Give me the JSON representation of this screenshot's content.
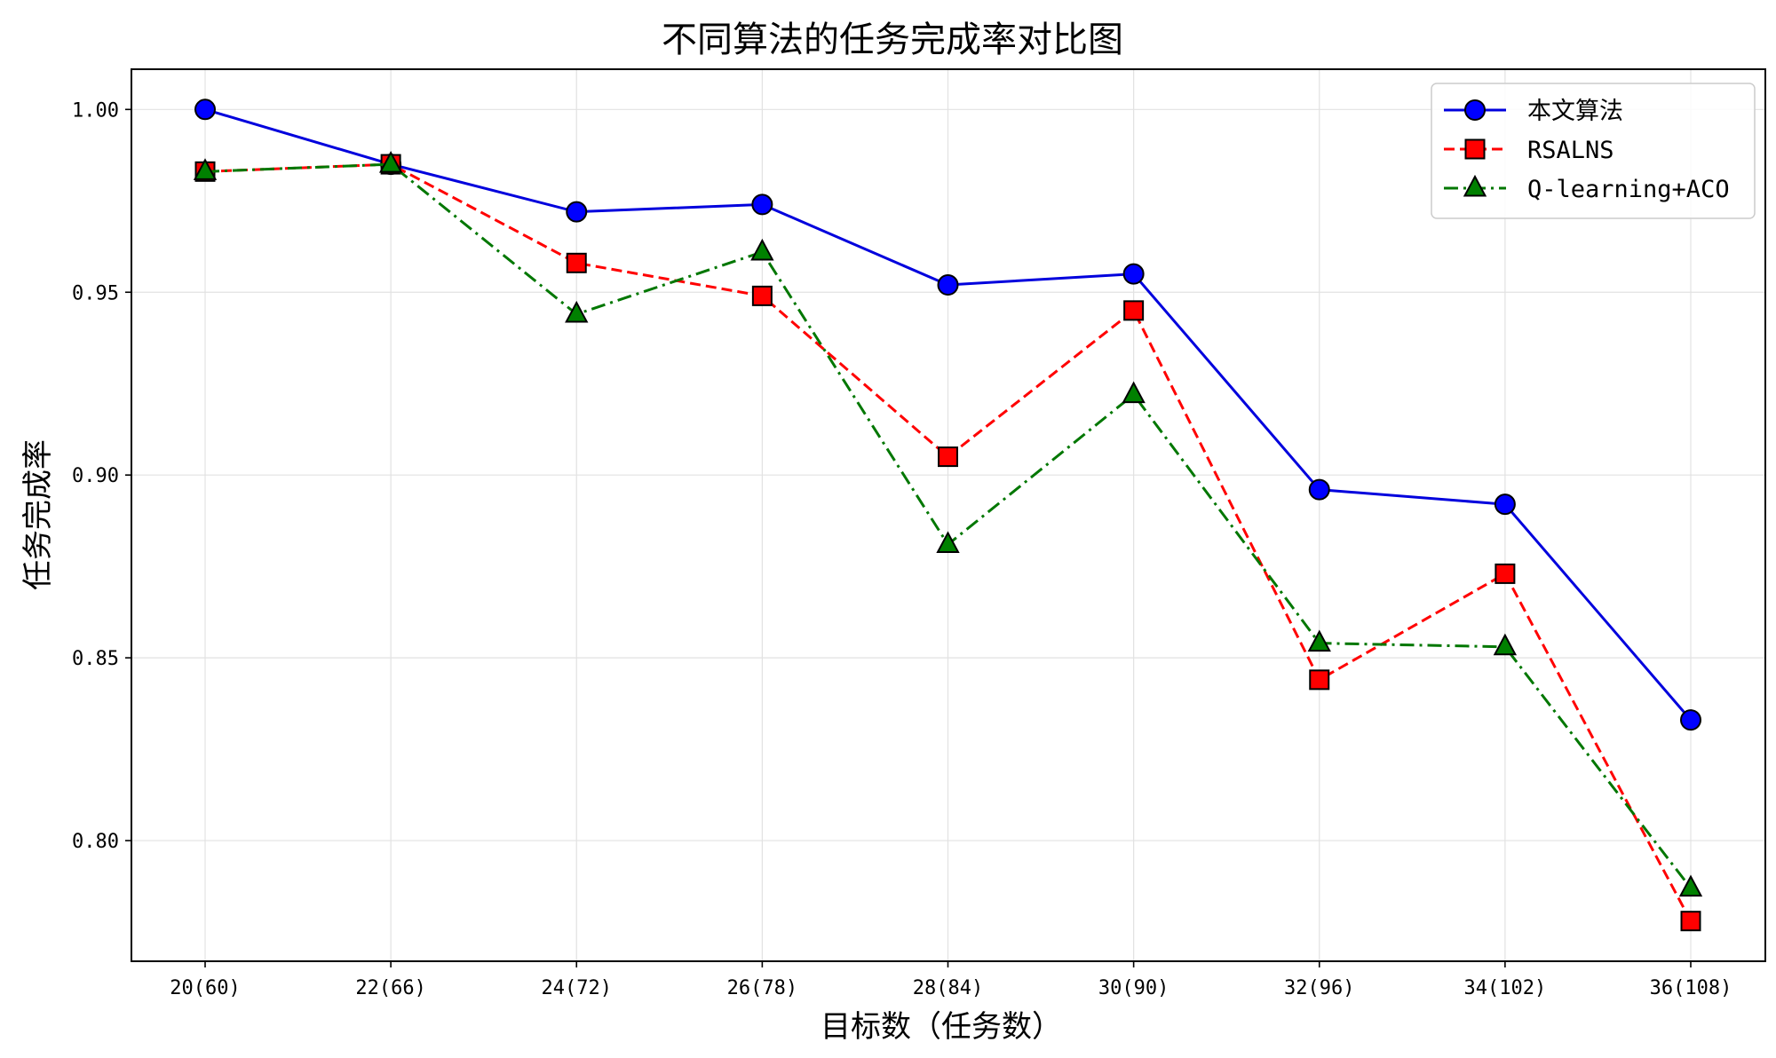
{
  "chart_data": {
    "type": "line",
    "title": "不同算法的任务完成率对比图",
    "xlabel": "目标数（任务数）",
    "ylabel": "任务完成率",
    "categories": [
      "20(60)",
      "22(66)",
      "24(72)",
      "26(78)",
      "28(84)",
      "30(90)",
      "32(96)",
      "34(102)",
      "36(108)"
    ],
    "ylim": [
      0.767,
      1.011
    ],
    "yticks": [
      0.8,
      0.85,
      0.9,
      0.95,
      1.0
    ],
    "ytick_labels": [
      "0.80",
      "0.85",
      "0.90",
      "0.95",
      "1.00"
    ],
    "grid": true,
    "legend_position": "upper right",
    "series": [
      {
        "name": "本文算法",
        "values": [
          1.0,
          0.985,
          0.972,
          0.974,
          0.952,
          0.955,
          0.896,
          0.892,
          0.833
        ],
        "color": "#0000dd",
        "line_style": "solid",
        "marker": "circle",
        "marker_fill": "#0000ff"
      },
      {
        "name": "RSALNS",
        "values": [
          0.983,
          0.985,
          0.958,
          0.949,
          0.905,
          0.945,
          0.844,
          0.873,
          0.778
        ],
        "color": "#ff0000",
        "line_style": "dashed",
        "marker": "square",
        "marker_fill": "#ff0000"
      },
      {
        "name": "Q-learning+ACO",
        "values": [
          0.983,
          0.985,
          0.944,
          0.961,
          0.881,
          0.922,
          0.854,
          0.853,
          0.787
        ],
        "color": "#007700",
        "line_style": "dashdot",
        "marker": "triangle",
        "marker_fill": "#008000"
      }
    ]
  }
}
